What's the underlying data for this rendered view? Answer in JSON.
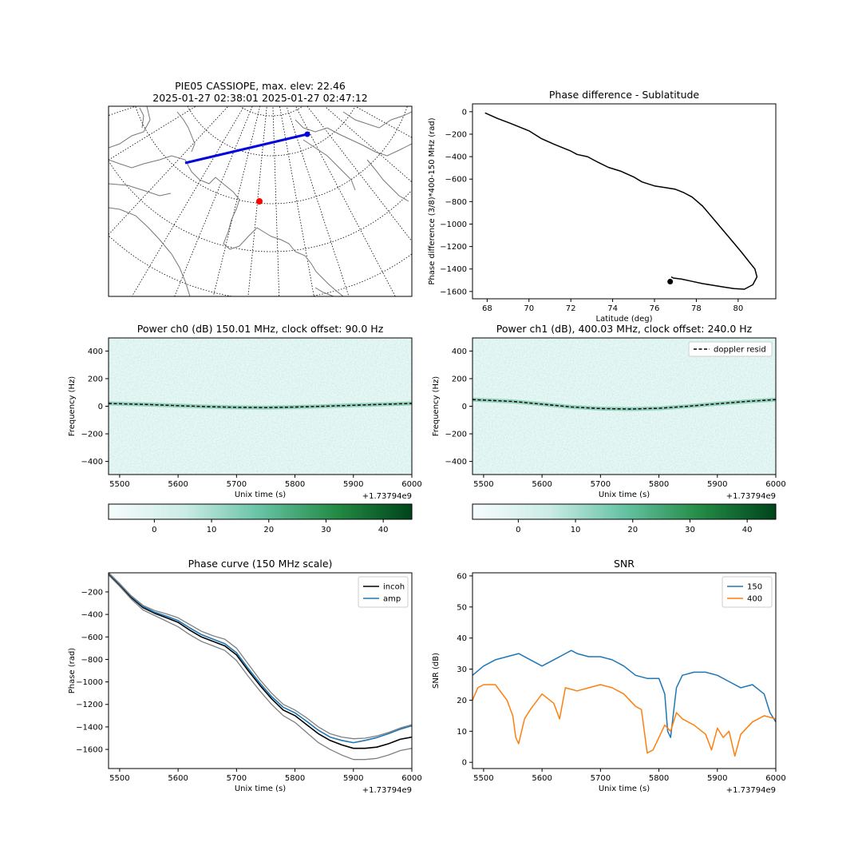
{
  "chart_data": [
    {
      "id": "map",
      "type": "map",
      "title_line1": "PIE05 CASSIOPE, max. elev: 22.46",
      "title_line2": "2025-01-27 02:38:01 2025-01-27 02:47:12",
      "colors": {
        "track": "#0000dd",
        "station": "#ff0000",
        "coast": "#777777",
        "grid": "#000000"
      }
    },
    {
      "id": "phase_lat",
      "type": "line",
      "title": "Phase difference - Sublatitude",
      "xlabel": "Latitude (deg)",
      "ylabel": "Phase difference (3/8)*400-150 MHz (rad)",
      "xlim": [
        67.3,
        81.8
      ],
      "ylim": [
        -1665,
        70
      ],
      "xticks": [
        68,
        70,
        72,
        74,
        76,
        78,
        80
      ],
      "yticks": [
        0,
        -200,
        -400,
        -600,
        -800,
        -1000,
        -1200,
        -1400,
        -1600
      ],
      "series": [
        {
          "color": "#000000",
          "x": [
            67.9,
            68.5,
            69.2,
            70.0,
            70.6,
            71.2,
            71.6,
            72.0,
            72.3,
            72.8,
            73.3,
            73.8,
            74.4,
            75.0,
            75.4,
            76.0,
            76.5,
            77.0,
            77.4,
            77.8,
            78.3,
            78.8,
            79.3,
            79.8,
            80.2,
            80.5,
            80.8,
            80.9,
            80.7,
            80.3,
            79.8,
            79.3,
            78.8,
            78.3,
            77.8,
            77.3,
            76.9,
            76.8
          ],
          "y": [
            -10,
            -60,
            -110,
            -170,
            -240,
            -290,
            -320,
            -350,
            -380,
            -400,
            -450,
            -495,
            -530,
            -580,
            -625,
            -660,
            -675,
            -690,
            -720,
            -760,
            -840,
            -950,
            -1060,
            -1170,
            -1260,
            -1330,
            -1400,
            -1470,
            -1540,
            -1580,
            -1575,
            -1560,
            -1545,
            -1530,
            -1510,
            -1490,
            -1480,
            -1470
          ]
        }
      ],
      "endpoint": {
        "x": 76.75,
        "y": -1512
      }
    },
    {
      "id": "power_ch0",
      "type": "heatmap",
      "title": "Power ch0 (dB) 150.01 MHz, clock offset: 90.0 Hz",
      "xlabel": "Unix time (s)",
      "ylabel": "Frequency (Hz)",
      "offset_label": "+1.73794e9",
      "xlim": [
        5481,
        6000
      ],
      "ylim": [
        -495,
        495
      ],
      "xticks": [
        5500,
        5600,
        5700,
        5800,
        5900,
        6000
      ],
      "yticks": [
        400,
        200,
        0,
        -200,
        -400
      ],
      "doppler_resid": {
        "x": [
          5481,
          5550,
          5600,
          5650,
          5700,
          5750,
          5800,
          5850,
          5900,
          5950,
          6000
        ],
        "y": [
          20,
          12,
          4,
          -3,
          -8,
          -10,
          -6,
          0,
          7,
          14,
          20
        ]
      },
      "colorbar": {
        "ticks": [
          0,
          10,
          20,
          30,
          40
        ],
        "range": [
          -8,
          45
        ],
        "colors": [
          "#f7fcfd",
          "#ccece6",
          "#66c2a4",
          "#238b45",
          "#00441b"
        ]
      }
    },
    {
      "id": "power_ch1",
      "type": "heatmap",
      "title": "Power ch1 (dB), 400.03 MHz, clock offset: 240.0 Hz",
      "xlabel": "Unix time (s)",
      "ylabel": "Frequency (Hz)",
      "offset_label": "+1.73794e9",
      "xlim": [
        5481,
        6000
      ],
      "ylim": [
        -495,
        495
      ],
      "xticks": [
        5500,
        5600,
        5700,
        5800,
        5900,
        6000
      ],
      "yticks": [
        400,
        200,
        0,
        -200,
        -400
      ],
      "legend": [
        {
          "label": "doppler resid",
          "style": "dashed",
          "color": "#000000"
        }
      ],
      "legend_loc": "upper right",
      "doppler_resid": {
        "x": [
          5481,
          5550,
          5600,
          5650,
          5700,
          5750,
          5800,
          5850,
          5900,
          5950,
          6000
        ],
        "y": [
          48,
          35,
          15,
          -5,
          -17,
          -20,
          -15,
          0,
          18,
          35,
          48
        ]
      },
      "colorbar": {
        "ticks": [
          0,
          10,
          20,
          30,
          40
        ],
        "range": [
          -8,
          45
        ],
        "colors": [
          "#f7fcfd",
          "#ccece6",
          "#66c2a4",
          "#238b45",
          "#00441b"
        ]
      }
    },
    {
      "id": "phase_curve",
      "type": "line",
      "title": "Phase curve (150 MHz scale)",
      "xlabel": "Unix time (s)",
      "ylabel": "Phase (rad)",
      "offset_label": "+1.73794e9",
      "xlim": [
        5481,
        6000
      ],
      "ylim": [
        -1770,
        -30
      ],
      "xticks": [
        5500,
        5600,
        5700,
        5800,
        5900,
        6000
      ],
      "yticks": [
        -200,
        -400,
        -600,
        -800,
        -1000,
        -1200,
        -1400,
        -1600
      ],
      "legend_loc": "upper right",
      "series": [
        {
          "name": "incoh",
          "color": "#000000",
          "width": 1.6,
          "x": [
            5481,
            5500,
            5520,
            5540,
            5560,
            5580,
            5600,
            5620,
            5640,
            5660,
            5680,
            5700,
            5720,
            5740,
            5760,
            5780,
            5800,
            5820,
            5840,
            5860,
            5880,
            5900,
            5920,
            5940,
            5960,
            5980,
            6000
          ],
          "y": [
            -40,
            -140,
            -250,
            -340,
            -390,
            -430,
            -470,
            -540,
            -600,
            -640,
            -680,
            -760,
            -900,
            -1030,
            -1150,
            -1250,
            -1300,
            -1380,
            -1460,
            -1520,
            -1560,
            -1590,
            -1590,
            -1580,
            -1550,
            -1510,
            -1490
          ]
        },
        {
          "name": "amp",
          "color": "#1f77b4",
          "width": 1.6,
          "x": [
            5481,
            5500,
            5520,
            5540,
            5560,
            5580,
            5600,
            5620,
            5640,
            5660,
            5680,
            5700,
            5720,
            5740,
            5760,
            5780,
            5800,
            5820,
            5840,
            5860,
            5880,
            5900,
            5920,
            5940,
            5960,
            5980,
            6000
          ],
          "y": [
            -30,
            -130,
            -240,
            -330,
            -380,
            -415,
            -455,
            -520,
            -580,
            -620,
            -660,
            -740,
            -880,
            -1010,
            -1130,
            -1225,
            -1275,
            -1350,
            -1430,
            -1490,
            -1520,
            -1540,
            -1520,
            -1495,
            -1460,
            -1420,
            -1390
          ]
        },
        {
          "name": "",
          "color": "#808080",
          "width": 1.3,
          "x": [
            5481,
            5500,
            5520,
            5540,
            5560,
            5580,
            5600,
            5620,
            5640,
            5660,
            5680,
            5700,
            5720,
            5740,
            5760,
            5780,
            5800,
            5820,
            5840,
            5860,
            5880,
            5900,
            5920,
            5940,
            5960,
            5980,
            6000
          ],
          "y": [
            -30,
            -125,
            -235,
            -320,
            -365,
            -395,
            -430,
            -490,
            -550,
            -590,
            -620,
            -700,
            -840,
            -980,
            -1100,
            -1200,
            -1250,
            -1320,
            -1400,
            -1460,
            -1490,
            -1505,
            -1500,
            -1480,
            -1450,
            -1410,
            -1380
          ]
        },
        {
          "name": "",
          "color": "#808080",
          "width": 1.3,
          "x": [
            5481,
            5500,
            5520,
            5540,
            5560,
            5580,
            5600,
            5620,
            5640,
            5660,
            5680,
            5700,
            5720,
            5740,
            5760,
            5780,
            5800,
            5820,
            5840,
            5860,
            5880,
            5900,
            5920,
            5940,
            5960,
            5980,
            6000
          ],
          "y": [
            -50,
            -150,
            -265,
            -360,
            -410,
            -460,
            -510,
            -580,
            -640,
            -680,
            -720,
            -810,
            -950,
            -1080,
            -1200,
            -1300,
            -1360,
            -1450,
            -1540,
            -1600,
            -1650,
            -1690,
            -1690,
            -1680,
            -1650,
            -1610,
            -1590
          ]
        }
      ]
    },
    {
      "id": "snr",
      "type": "line",
      "title": "SNR",
      "xlabel": "Unix time (s)",
      "ylabel": "SNR (dB)",
      "offset_label": "+1.73794e9",
      "xlim": [
        5481,
        6000
      ],
      "ylim": [
        -2,
        61
      ],
      "xticks": [
        5500,
        5600,
        5700,
        5800,
        5900,
        6000
      ],
      "yticks": [
        0,
        10,
        20,
        30,
        40,
        50,
        60
      ],
      "legend_loc": "upper right",
      "series": [
        {
          "name": "150",
          "color": "#1f77b4",
          "x": [
            5481,
            5500,
            5520,
            5540,
            5560,
            5580,
            5590,
            5600,
            5620,
            5640,
            5650,
            5660,
            5680,
            5700,
            5720,
            5740,
            5760,
            5780,
            5800,
            5810,
            5815,
            5820,
            5830,
            5840,
            5860,
            5880,
            5900,
            5920,
            5940,
            5960,
            5980,
            5990,
            6000
          ],
          "y": [
            28,
            31,
            33,
            34,
            35,
            33,
            32,
            31,
            33,
            35,
            36,
            35,
            34,
            34,
            33,
            31,
            28,
            27,
            27,
            22,
            10,
            8,
            24,
            28,
            29,
            29,
            28,
            26,
            24,
            25,
            22,
            16,
            13
          ]
        },
        {
          "name": "400",
          "color": "#ff7f0e",
          "x": [
            5481,
            5490,
            5500,
            5520,
            5540,
            5550,
            5555,
            5560,
            5570,
            5580,
            5600,
            5620,
            5630,
            5640,
            5660,
            5680,
            5700,
            5720,
            5740,
            5760,
            5770,
            5780,
            5790,
            5800,
            5810,
            5820,
            5830,
            5840,
            5860,
            5880,
            5890,
            5900,
            5910,
            5920,
            5930,
            5940,
            5960,
            5980,
            6000
          ],
          "y": [
            20,
            24,
            25,
            25,
            20,
            15,
            8,
            6,
            14,
            17,
            22,
            19,
            14,
            24,
            23,
            24,
            25,
            24,
            22,
            18,
            17,
            3,
            4,
            8,
            12,
            10,
            16,
            14,
            12,
            9,
            4,
            11,
            8,
            10,
            2,
            9,
            13,
            15,
            14
          ]
        }
      ]
    }
  ]
}
